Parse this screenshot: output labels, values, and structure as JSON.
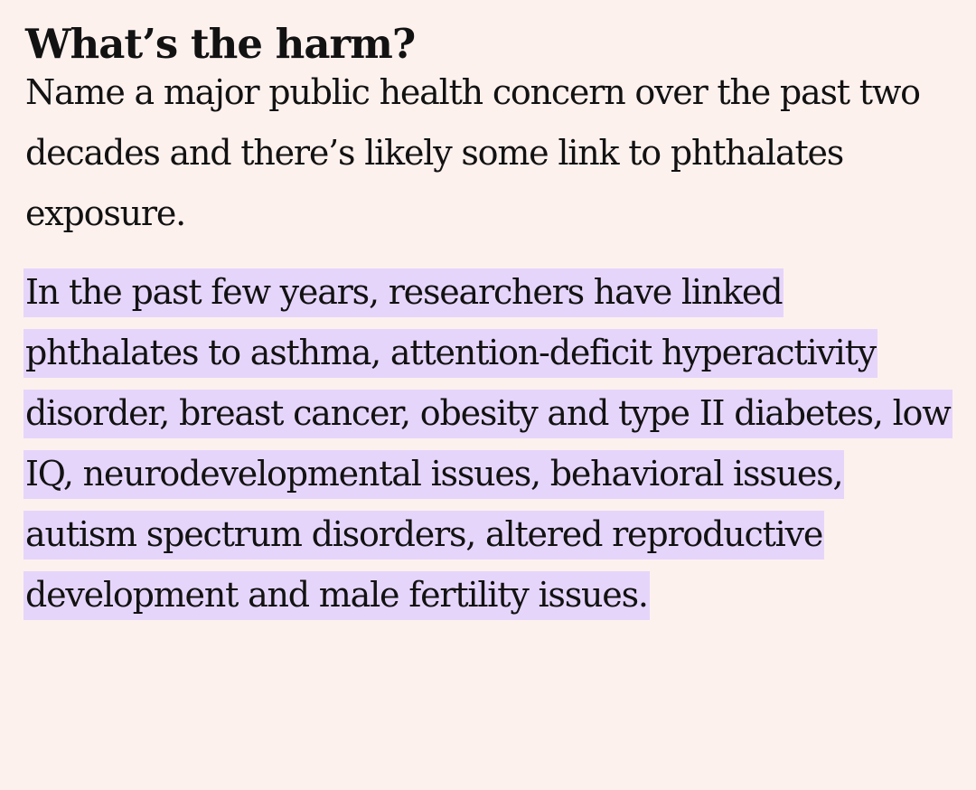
{
  "article": {
    "heading": "What’s the harm?",
    "paragraph_1": "Name a major public health concern over the past two decades and there’s likely some link to phthalates exposure.",
    "paragraph_2": "In the past few years, researchers have linked phthalates to asthma, attention-deficit hyperactivity disorder, breast cancer, obesity and type II diabetes, low IQ, neurodevelopmental issues, behavioral issues, autism spectrum disorders, altered reproductive development and male fertility issues."
  },
  "colors": {
    "background": "#fdf1ee",
    "highlight": "#e6d5fb",
    "text": "#121212"
  }
}
